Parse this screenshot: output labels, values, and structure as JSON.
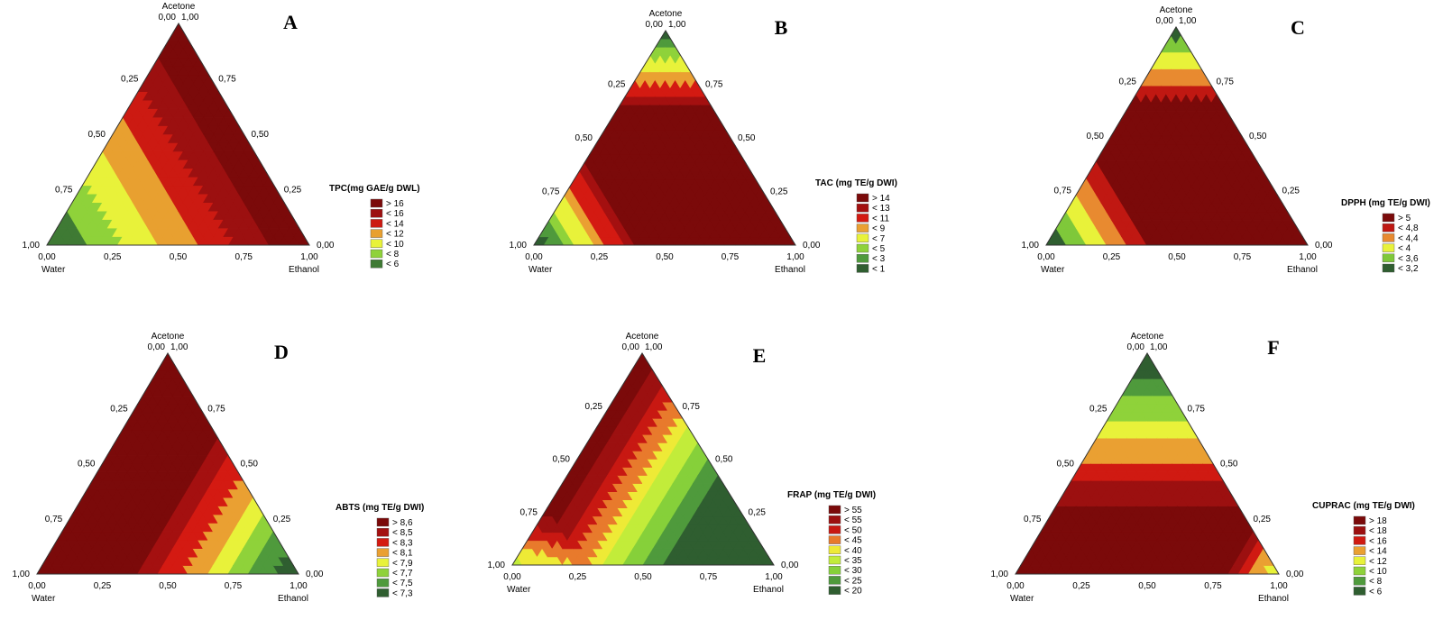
{
  "chart_data": [
    {
      "type": "ternary-contour",
      "panel": "A",
      "vertices": {
        "top": "Acetone",
        "left": "Water",
        "right": "Ethanol"
      },
      "ticks": [
        "0,00",
        "0,25",
        "0,50",
        "0,75",
        "1,00"
      ],
      "legend_title": "TPC(mg GAE/g DWL)",
      "legend": [
        {
          "label": "> 16",
          "color": "#7b0a0a"
        },
        {
          "label": "< 16",
          "color": "#9c1010"
        },
        {
          "label": "< 14",
          "color": "#cc1a12"
        },
        {
          "label": "< 12",
          "color": "#e8a030"
        },
        {
          "label": "< 10",
          "color": "#e8f23a"
        },
        {
          "label": "< 8",
          "color": "#8fd23a"
        },
        {
          "label": "< 6",
          "color": "#3f7a34"
        }
      ],
      "color_scale": "1-Wa+0.5-Ac"
    },
    {
      "type": "ternary-contour",
      "panel": "B",
      "vertices": {
        "top": "Acetone",
        "left": "Water",
        "right": "Ethanol"
      },
      "ticks": [
        "0,00",
        "0,25",
        "0,50",
        "0,75",
        "1,00"
      ],
      "legend_title": "TAC (mg TE/g DWI)",
      "legend": [
        {
          "label": "> 14",
          "color": "#7b0a0a"
        },
        {
          "label": "< 13",
          "color": "#a41010"
        },
        {
          "label": "< 11",
          "color": "#d41a12"
        },
        {
          "label": "< 9",
          "color": "#eaa032"
        },
        {
          "label": "< 7",
          "color": "#e8f23a"
        },
        {
          "label": "< 5",
          "color": "#8fd23a"
        },
        {
          "label": "< 3",
          "color": "#4f9a3c"
        },
        {
          "label": "< 1",
          "color": "#2f5e30"
        }
      ],
      "color_scale": "bias"
    },
    {
      "type": "ternary-contour",
      "panel": "C",
      "vertices": {
        "top": "Acetone",
        "left": "Water",
        "right": "Ethanol"
      },
      "ticks": [
        "0,00",
        "0,25",
        "0,50",
        "0,75",
        "1,00"
      ],
      "legend_title": "DPPH (mg TE/g DWI)",
      "legend": [
        {
          "label": "> 5",
          "color": "#7b0a0a"
        },
        {
          "label": "< 4,8",
          "color": "#c01812"
        },
        {
          "label": "< 4,4",
          "color": "#e88a30"
        },
        {
          "label": "< 4",
          "color": "#e8f23a"
        },
        {
          "label": "< 3,6",
          "color": "#7fc83a"
        },
        {
          "label": "< 3,2",
          "color": "#2f5e30"
        }
      ],
      "color_scale": "bias"
    },
    {
      "type": "ternary-contour",
      "panel": "D",
      "vertices": {
        "top": "Acetone",
        "left": "Water",
        "right": "Ethanol"
      },
      "ticks": [
        "0,00",
        "0,25",
        "0,50",
        "0,75",
        "1,00"
      ],
      "legend_title": "ABTS (mg TE/g DWI)",
      "legend": [
        {
          "label": "> 8,6",
          "color": "#7b0a0a"
        },
        {
          "label": "< 8,5",
          "color": "#a41010"
        },
        {
          "label": "< 8,3",
          "color": "#d41a12"
        },
        {
          "label": "< 8,1",
          "color": "#eaa032"
        },
        {
          "label": "< 7,9",
          "color": "#e8f23a"
        },
        {
          "label": "< 7,7",
          "color": "#8fd23a"
        },
        {
          "label": "< 7,5",
          "color": "#4f9a3c"
        },
        {
          "label": "< 7,3",
          "color": "#2f5e30"
        }
      ],
      "color_scale": "1-Et"
    },
    {
      "type": "ternary-contour",
      "panel": "E",
      "vertices": {
        "top": "Acetone",
        "left": "Water",
        "right": "Ethanol"
      },
      "ticks": [
        "0,00",
        "0,25",
        "0,50",
        "0,75",
        "1,00"
      ],
      "legend_title": "FRAP (mg TE/g DWI)",
      "legend": [
        {
          "label": "> 55",
          "color": "#7b0a0a"
        },
        {
          "label": "< 55",
          "color": "#9c1010"
        },
        {
          "label": "< 50",
          "color": "#c81812"
        },
        {
          "label": "< 45",
          "color": "#e87a2c"
        },
        {
          "label": "< 40",
          "color": "#eeea36"
        },
        {
          "label": "< 35",
          "color": "#c2ec3a"
        },
        {
          "label": "< 30",
          "color": "#86d03a"
        },
        {
          "label": "< 25",
          "color": "#4f9a3c"
        },
        {
          "label": "< 20",
          "color": "#2f5e30"
        }
      ],
      "color_scale": "1-1.6Et-Wa"
    },
    {
      "type": "ternary-contour",
      "panel": "F",
      "vertices": {
        "top": "Acetone",
        "left": "Water",
        "right": "Ethanol"
      },
      "ticks": [
        "0,00",
        "0,25",
        "0,50",
        "0,75",
        "1,00"
      ],
      "legend_title": "CUPRAC (mg TE/g DWI)",
      "legend": [
        {
          "label": "> 18",
          "color": "#7b0a0a"
        },
        {
          "label": "< 18",
          "color": "#9c1010"
        },
        {
          "label": "< 16",
          "color": "#d01a12"
        },
        {
          "label": "< 14",
          "color": "#eaa032"
        },
        {
          "label": "< 12",
          "color": "#e8f23a"
        },
        {
          "label": "< 10",
          "color": "#8fd23a"
        },
        {
          "label": "< 8",
          "color": "#4f9a3c"
        },
        {
          "label": "< 6",
          "color": "#2f5e30"
        }
      ],
      "color_scale": "1-Ac"
    }
  ]
}
